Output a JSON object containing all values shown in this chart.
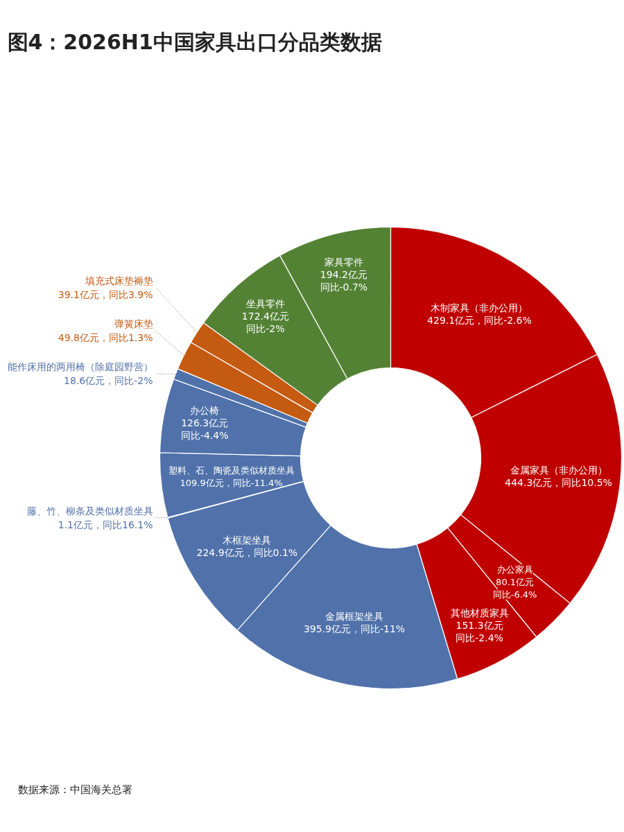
{
  "chart_data": {
    "type": "donut",
    "title": "图4：2026H1中国家具出口分品类数据",
    "categories": [
      "木制家具（非办公用）",
      "金属家具（非办公用）",
      "办公家具",
      "其他材质家具",
      "金属框架坐具",
      "木框架坐具",
      "藤、竹、柳条及类似材质坐具",
      "塑料、石、陶瓷及类似材质坐具",
      "办公椅",
      "能作床用的两用椅（除庭园野营）",
      "弹簧床垫",
      "填充式床垫褥垫",
      "坐具零件",
      "家具零件"
    ],
    "values": [
      429.1,
      444.3,
      80.1,
      151.3,
      395.9,
      224.9,
      1.1,
      109.9,
      126.3,
      18.6,
      49.8,
      39.1,
      172.4,
      194.2
    ],
    "colors": [
      "#c00000",
      "#c00000",
      "#c00000",
      "#c00000",
      "#5071aa",
      "#5071aa",
      "#5071aa",
      "#5071aa",
      "#5071aa",
      "#5071aa",
      "#c55a11",
      "#c55a11",
      "#548235",
      "#548235"
    ],
    "value_labels": [
      "429.1亿元，同比-2.6%",
      "444.3亿元，同比10.5%",
      "80.1亿元同比-6.4%",
      "151.3亿元同比-2.4%",
      "395.9亿元，同比-11%",
      "224.9亿元，同比0.1%",
      "1.1亿元，同比16.1%",
      "109.9亿元，同比-11.4%",
      "126.3亿元同比-4.4%",
      "18.6亿元，同比-2%",
      "49.8亿元，同比1.3%",
      "39.1亿元，同比3.9%",
      "172.4亿元同比-2%",
      "194.2亿元同比-0.7%"
    ],
    "annotations": [
      "数据来源：中国海关总署"
    ]
  }
}
